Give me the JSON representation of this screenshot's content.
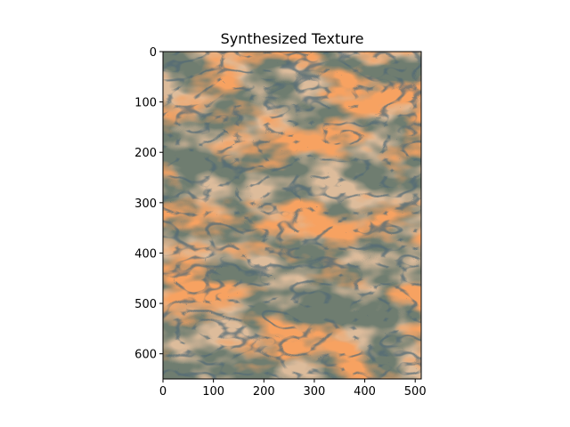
{
  "chart_data": {
    "type": "image",
    "title": "Synthesized Texture",
    "xlim": [
      0,
      512
    ],
    "ylim": [
      650,
      0
    ],
    "xticks": [
      0,
      100,
      200,
      300,
      400,
      500
    ],
    "yticks": [
      0,
      100,
      200,
      300,
      400,
      500,
      600
    ]
  }
}
